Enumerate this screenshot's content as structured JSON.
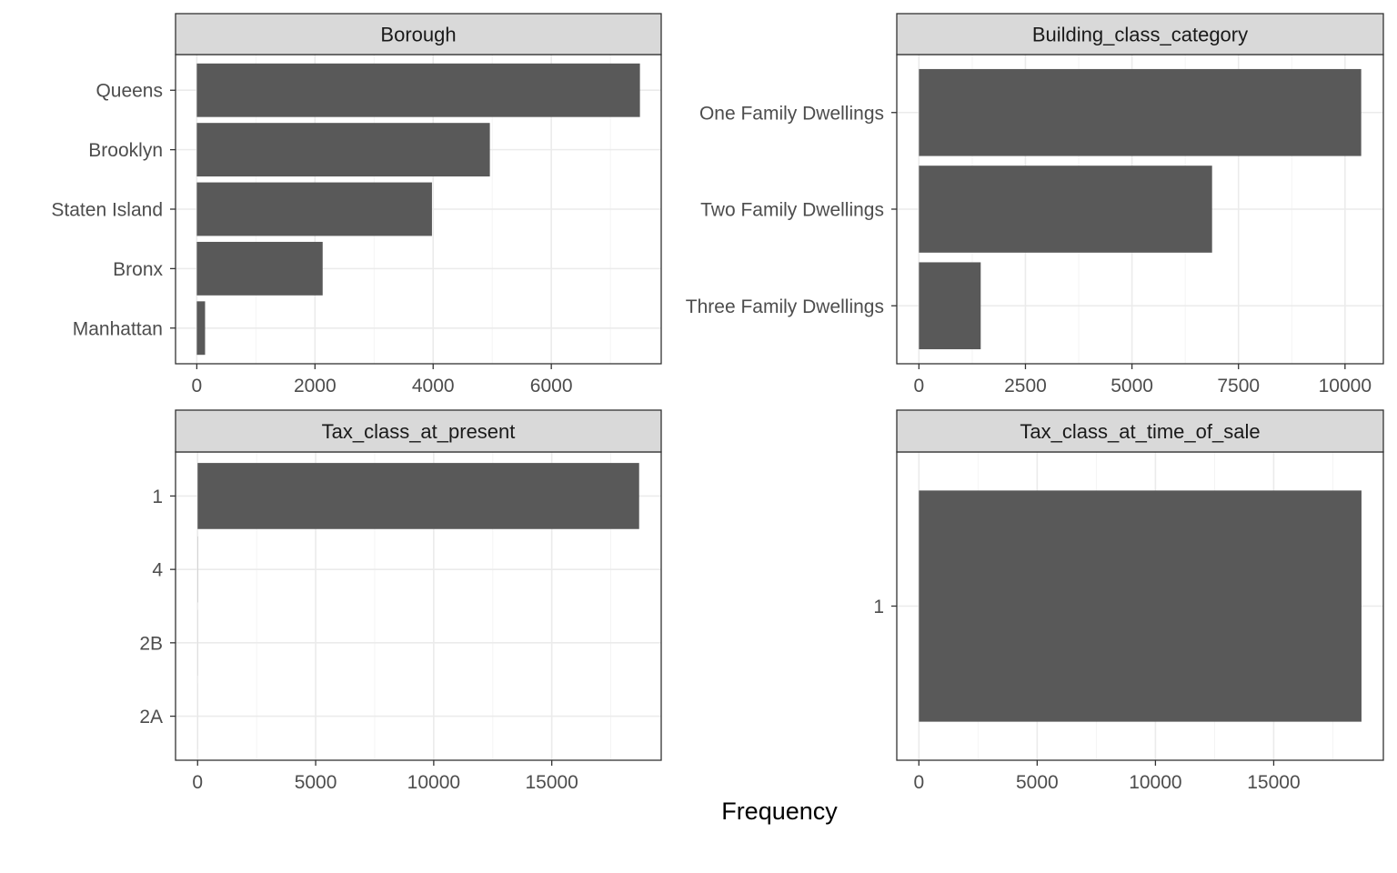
{
  "chart_data": [
    {
      "type": "bar",
      "orientation": "horizontal",
      "title": "Borough",
      "categories": [
        "Queens",
        "Brooklyn",
        "Staten Island",
        "Bronx",
        "Manhattan"
      ],
      "values": [
        7500,
        4960,
        3980,
        2130,
        140
      ],
      "xlim": [
        -360,
        7860
      ],
      "xticks": [
        0,
        2000,
        4000,
        6000
      ],
      "xtick_labels": [
        "0",
        "2000",
        "4000",
        "6000"
      ],
      "grid": true
    },
    {
      "type": "bar",
      "orientation": "horizontal",
      "title": "Building_class_category",
      "categories": [
        "One Family Dwellings",
        "Two Family Dwellings",
        "Three Family Dwellings"
      ],
      "values": [
        10380,
        6880,
        1450
      ],
      "xlim": [
        -520,
        10900
      ],
      "xticks": [
        0,
        2500,
        5000,
        7500,
        10000
      ],
      "xtick_labels": [
        "0",
        "2500",
        "5000",
        "7500",
        "10000"
      ],
      "grid": true
    },
    {
      "type": "bar",
      "orientation": "horizontal",
      "title": "Tax_class_at_present",
      "categories": [
        "1",
        "4",
        "2B",
        "2A"
      ],
      "values": [
        18700,
        6,
        3,
        1
      ],
      "xlim": [
        -935,
        19635
      ],
      "xticks": [
        0,
        5000,
        10000,
        15000
      ],
      "xtick_labels": [
        "0",
        "5000",
        "10000",
        "15000"
      ],
      "grid": true
    },
    {
      "type": "bar",
      "orientation": "horizontal",
      "title": "Tax_class_at_time_of_sale",
      "categories": [
        "1"
      ],
      "values": [
        18710
      ],
      "xlim": [
        -935,
        19635
      ],
      "xticks": [
        0,
        5000,
        10000,
        15000
      ],
      "xtick_labels": [
        "0",
        "5000",
        "10000",
        "15000"
      ],
      "grid": true
    }
  ],
  "xlabel": "Frequency",
  "colors": {
    "bar": "#595959",
    "strip_background": "#d9d9d9",
    "panel_border": "#333333",
    "grid_major": "#ebebeb",
    "grid_minor": "#f3f3f3",
    "axis_text": "#4d4d4d",
    "strip_text": "#1a1a1a"
  }
}
